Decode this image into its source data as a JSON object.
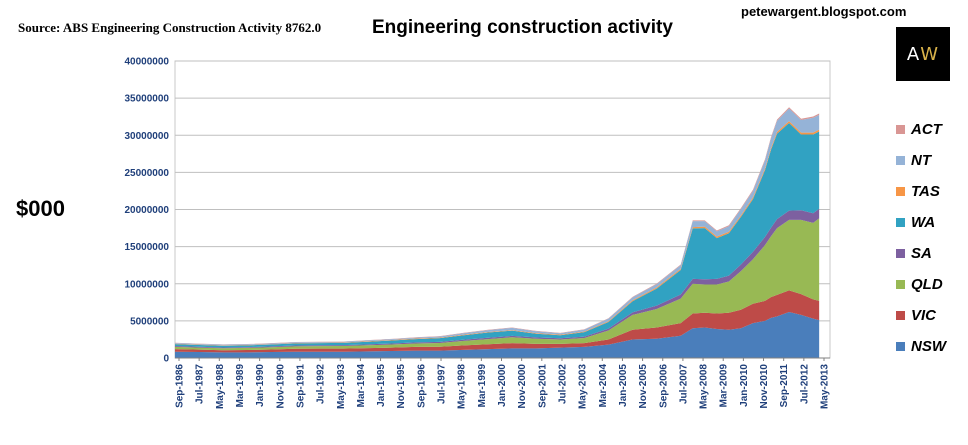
{
  "header": {
    "source": "Source: ABS Engineering Construction Activity 8762.0",
    "blog": "petewargent.blogspot.com",
    "logo_text_a": "A",
    "logo_text_w": "W",
    "unit_label": "$000"
  },
  "chart_data": {
    "type": "area",
    "stacked": true,
    "title": "Engineering construction activity",
    "ylabel": "$000",
    "ylim": [
      0,
      40000000
    ],
    "yticks": [
      "0",
      "5000000",
      "10000000",
      "15000000",
      "20000000",
      "25000000",
      "30000000",
      "35000000",
      "40000000"
    ],
    "ytick_values": [
      0,
      5000000,
      10000000,
      15000000,
      20000000,
      25000000,
      30000000,
      35000000,
      40000000
    ],
    "grid": true,
    "legend_position": "right",
    "x_labels": [
      "Sep-1986",
      "Jul-1987",
      "May-1988",
      "Mar-1989",
      "Jan-1990",
      "Nov-1990",
      "Sep-1991",
      "Jul-1992",
      "May-1993",
      "Mar-1994",
      "Jan-1995",
      "Nov-1995",
      "Sep-1996",
      "Jul-1997",
      "May-1998",
      "Mar-1999",
      "Jan-2000",
      "Nov-2000",
      "Sep-2001",
      "Jul-2002",
      "May-2003",
      "Mar-2004",
      "Jan-2005",
      "Nov-2005",
      "Sep-2006",
      "Jul-2007",
      "May-2008",
      "Mar-2009",
      "Jan-2010",
      "Nov-2010",
      "Sep-2011",
      "Jul-2012",
      "May-2013"
    ],
    "x_years": [
      1986.75,
      1987.75,
      1988.75,
      1989.75,
      1990.75,
      1991.75,
      1992.75,
      1993.75,
      1994.75,
      1995.75,
      1996.75,
      1997.75,
      1998.75,
      1999.75,
      2000.75,
      2001.75,
      2002.75,
      2003.75,
      2004.75,
      2005.75,
      2006.75,
      2007.75,
      2008.25,
      2008.75,
      2009.25,
      2009.75,
      2010.25,
      2010.75,
      2011.25,
      2011.5,
      2011.75,
      2012.25,
      2012.75,
      2013.25,
      2013.5
    ],
    "series": [
      {
        "name": "NSW",
        "color": "#4a7ebb",
        "values": [
          850000,
          800000,
          750000,
          760000,
          800000,
          850000,
          850000,
          850000,
          900000,
          950000,
          1000000,
          1000000,
          1100000,
          1200000,
          1300000,
          1300000,
          1400000,
          1500000,
          1800000,
          2500000,
          2600000,
          3000000,
          4000000,
          4100000,
          3900000,
          3800000,
          4000000,
          4700000,
          5000000,
          5400000,
          5600000,
          6200000,
          5800000,
          5300000,
          5100000
        ]
      },
      {
        "name": "VIC",
        "color": "#be4b48",
        "values": [
          350000,
          320000,
          300000,
          320000,
          350000,
          400000,
          420000,
          420000,
          430000,
          450000,
          500000,
          520000,
          600000,
          650000,
          700000,
          600000,
          500000,
          500000,
          700000,
          1300000,
          1500000,
          1700000,
          2000000,
          2000000,
          2100000,
          2300000,
          2500000,
          2600000,
          2700000,
          2800000,
          2900000,
          2900000,
          2800000,
          2600000,
          2600000
        ]
      },
      {
        "name": "QLD",
        "color": "#98b954",
        "values": [
          300000,
          280000,
          270000,
          280000,
          300000,
          320000,
          330000,
          350000,
          380000,
          420000,
          450000,
          500000,
          600000,
          700000,
          800000,
          700000,
          600000,
          700000,
          1200000,
          2000000,
          2500000,
          3300000,
          4000000,
          3800000,
          3900000,
          4200000,
          5200000,
          6000000,
          7500000,
          8200000,
          9000000,
          9500000,
          10000000,
          10300000,
          11100000
        ]
      },
      {
        "name": "SA",
        "color": "#7d60a0",
        "values": [
          120000,
          110000,
          100000,
          100000,
          110000,
          120000,
          120000,
          120000,
          130000,
          140000,
          150000,
          160000,
          170000,
          180000,
          180000,
          170000,
          160000,
          180000,
          250000,
          350000,
          450000,
          550000,
          650000,
          700000,
          750000,
          800000,
          900000,
          1000000,
          1100000,
          1150000,
          1200000,
          1250000,
          1300000,
          1300000,
          1300000
        ]
      },
      {
        "name": "WA",
        "color": "#31a2c2",
        "values": [
          250000,
          240000,
          230000,
          240000,
          250000,
          280000,
          280000,
          300000,
          350000,
          400000,
          450000,
          500000,
          600000,
          700000,
          700000,
          500000,
          400000,
          600000,
          900000,
          1500000,
          2300000,
          3300000,
          6800000,
          6900000,
          5500000,
          5700000,
          6400000,
          7100000,
          9000000,
          10500000,
          11500000,
          11800000,
          10200000,
          10600000,
          10400000
        ]
      },
      {
        "name": "TAS",
        "color": "#f79646",
        "values": [
          50000,
          50000,
          50000,
          50000,
          50000,
          50000,
          50000,
          50000,
          60000,
          60000,
          70000,
          70000,
          80000,
          80000,
          80000,
          80000,
          80000,
          90000,
          100000,
          120000,
          140000,
          160000,
          180000,
          190000,
          200000,
          200000,
          200000,
          210000,
          220000,
          230000,
          240000,
          250000,
          250000,
          250000,
          250000
        ]
      },
      {
        "name": "NT",
        "color": "#95b3d7",
        "values": [
          100000,
          100000,
          100000,
          100000,
          100000,
          100000,
          100000,
          100000,
          120000,
          120000,
          130000,
          150000,
          200000,
          250000,
          300000,
          250000,
          200000,
          250000,
          350000,
          400000,
          450000,
          500000,
          800000,
          750000,
          700000,
          750000,
          850000,
          900000,
          1100000,
          1300000,
          1500000,
          1700000,
          1700000,
          2000000,
          2000000
        ]
      },
      {
        "name": "ACT",
        "color": "#d99694",
        "values": [
          40000,
          40000,
          40000,
          40000,
          40000,
          40000,
          40000,
          40000,
          40000,
          40000,
          50000,
          50000,
          50000,
          50000,
          50000,
          50000,
          50000,
          60000,
          60000,
          70000,
          80000,
          90000,
          100000,
          100000,
          120000,
          130000,
          140000,
          150000,
          150000,
          160000,
          160000,
          170000,
          170000,
          180000,
          180000
        ]
      }
    ]
  }
}
